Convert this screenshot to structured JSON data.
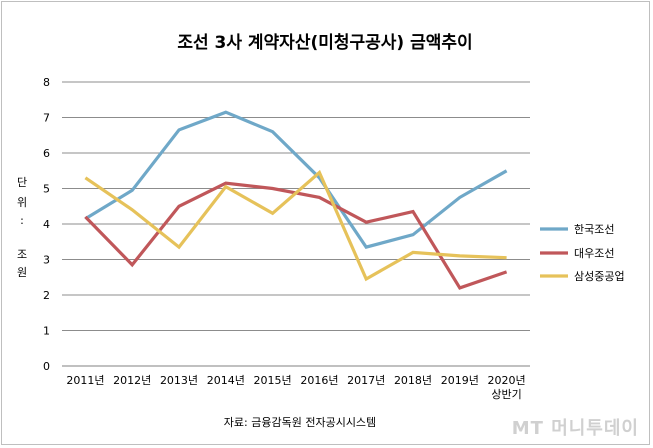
{
  "chart_data": {
    "type": "line",
    "title": "조선 3사 계약자산(미청구공사) 금액추이",
    "unit_label_chars": [
      "단",
      "위",
      ":",
      "조",
      "원"
    ],
    "categories": [
      "2011년",
      "2012년",
      "2013년",
      "2014년",
      "2015년",
      "2016년",
      "2017년",
      "2018년",
      "2019년",
      "2020년"
    ],
    "last_category_sub": "상반기",
    "ylim": [
      0,
      8
    ],
    "yticks": [
      0,
      1,
      2,
      3,
      4,
      5,
      6,
      7,
      8
    ],
    "grid": true,
    "legend_position": "right",
    "series": [
      {
        "name": "한국조선",
        "color": "#6fa8c8",
        "values": [
          4.15,
          4.95,
          6.65,
          7.15,
          6.6,
          5.3,
          3.35,
          3.7,
          4.75,
          5.5
        ]
      },
      {
        "name": "대우조선",
        "color": "#c0575a",
        "values": [
          4.2,
          2.85,
          4.5,
          5.15,
          5.0,
          4.75,
          4.05,
          4.35,
          2.2,
          2.65
        ]
      },
      {
        "name": "삼성중공업",
        "color": "#e6c25a",
        "values": [
          5.3,
          4.4,
          3.35,
          5.05,
          4.3,
          5.45,
          2.45,
          3.2,
          3.1,
          3.05
        ]
      }
    ],
    "source": "자료: 금융감독원 전자공시시스템"
  },
  "watermark": "MT 머니투데이"
}
